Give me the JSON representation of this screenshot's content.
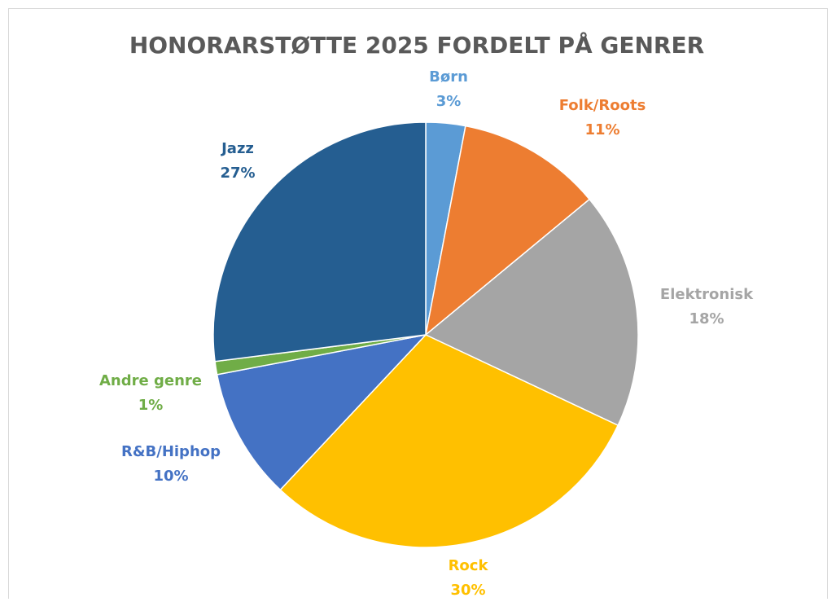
{
  "chart_data": {
    "type": "pie",
    "title": "HONORARSTØTTE 2025 FORDELT PÅ GENRER",
    "categories": [
      "Børn",
      "Folk/Roots",
      "Elektronisk",
      "Rock",
      "R&B/Hiphop",
      "Andre genre",
      "Jazz"
    ],
    "values": [
      3,
      11,
      18,
      30,
      10,
      1,
      27
    ],
    "value_labels": [
      "3%",
      "11%",
      "18%",
      "30%",
      "10%",
      "1%",
      "27%"
    ],
    "colors": [
      "#5b9bd5",
      "#ed7d31",
      "#a5a5a5",
      "#ffc000",
      "#4472c4",
      "#70ad47",
      "#255e91"
    ]
  }
}
